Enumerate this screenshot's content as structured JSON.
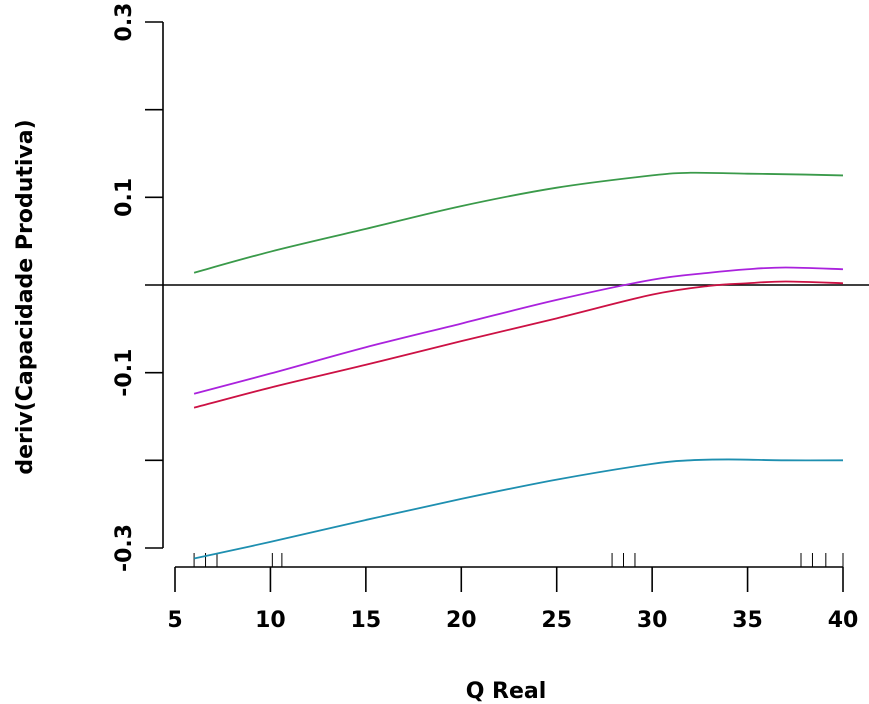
{
  "chart_data": {
    "type": "line",
    "title": "",
    "xlabel": "Q Real",
    "ylabel": "deriv(Capacidade Produtiva)",
    "xlim": [
      5,
      40
    ],
    "ylim": [
      -0.3,
      0.3
    ],
    "x_ticks": [
      5,
      10,
      15,
      20,
      25,
      30,
      35,
      40
    ],
    "x_tick_labels": [
      "5",
      "10",
      "15",
      "20",
      "25",
      "30",
      "35",
      "40"
    ],
    "y_ticks": [
      -0.3,
      -0.2,
      -0.1,
      0.0,
      0.1,
      0.2,
      0.3
    ],
    "y_tick_labels": [
      "-0.3",
      "",
      "-0.1",
      "",
      "0.1",
      "",
      "0.3"
    ],
    "reference_line": {
      "y": 0,
      "color": "#000000"
    },
    "rug": [
      6,
      6.6,
      7.2,
      10.1,
      10.6,
      27.9,
      28.5,
      29.1,
      37.8,
      38.4,
      39.1,
      40
    ],
    "series": [
      {
        "color": "#3a9a4a",
        "x": [
          6,
          10,
          15,
          20,
          25,
          30,
          32,
          35,
          38,
          40
        ],
        "y": [
          0.014,
          0.038,
          0.064,
          0.09,
          0.111,
          0.125,
          0.128,
          0.127,
          0.126,
          0.125
        ]
      },
      {
        "color": "#aa22dd",
        "x": [
          6,
          10,
          15,
          20,
          25,
          30,
          33,
          35,
          37,
          40
        ],
        "y": [
          -0.124,
          -0.101,
          -0.071,
          -0.044,
          -0.017,
          0.006,
          0.014,
          0.018,
          0.02,
          0.018
        ]
      },
      {
        "color": "#cc1144",
        "x": [
          6,
          10,
          15,
          20,
          25,
          30,
          33,
          35,
          37,
          40
        ],
        "y": [
          -0.14,
          -0.117,
          -0.091,
          -0.064,
          -0.038,
          -0.011,
          -0.001,
          0.002,
          0.004,
          0.002
        ]
      },
      {
        "color": "#1e8fb0",
        "x": [
          6,
          10,
          15,
          20,
          25,
          30,
          32,
          34,
          37,
          40
        ],
        "y": [
          -0.312,
          -0.293,
          -0.268,
          -0.244,
          -0.222,
          -0.204,
          -0.2,
          -0.199,
          -0.2,
          -0.2
        ]
      }
    ]
  }
}
